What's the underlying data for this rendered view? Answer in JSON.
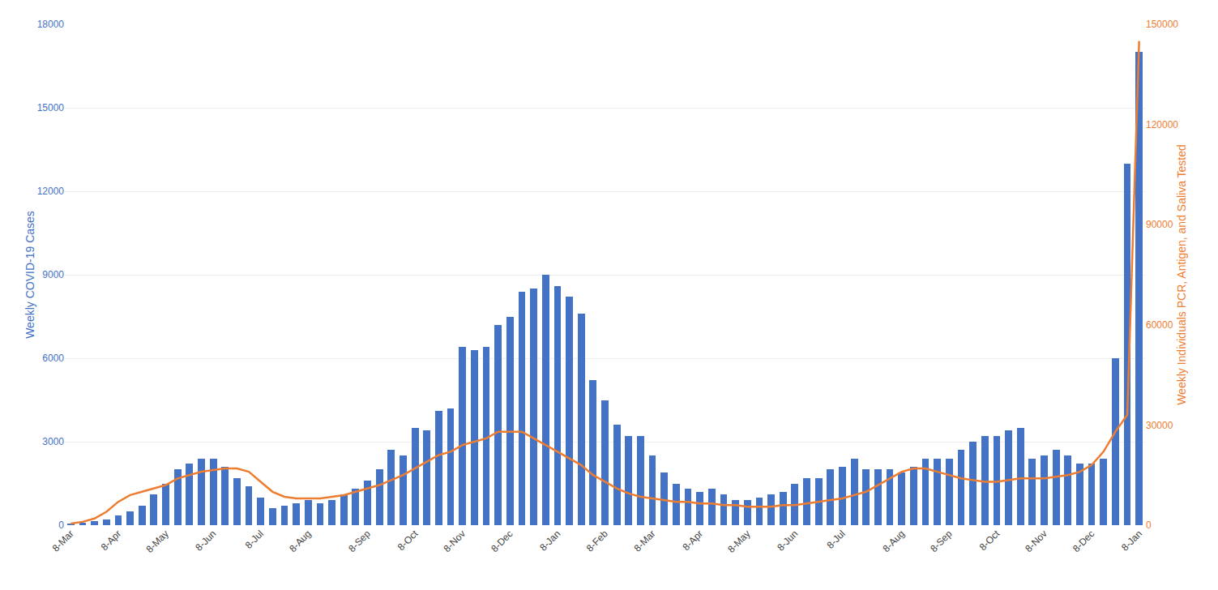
{
  "chart_data": {
    "type": "bar",
    "ylabel": "Weekly COVID-19 Cases",
    "y2label": "Weekly Individuals PCR, Antigen, and Saliva Tested",
    "categories": [
      "8-Mar",
      null,
      null,
      null,
      "8-Apr",
      null,
      null,
      null,
      "8-May",
      null,
      null,
      null,
      "8-Jun",
      null,
      null,
      null,
      "8-Jul",
      null,
      null,
      null,
      "8-Aug",
      null,
      null,
      null,
      null,
      "8-Sep",
      null,
      null,
      null,
      "8-Oct",
      null,
      null,
      null,
      "8-Nov",
      null,
      null,
      null,
      "8-Dec",
      null,
      null,
      null,
      "8-Jan",
      null,
      null,
      null,
      "8-Feb",
      null,
      null,
      null,
      "8-Mar",
      null,
      null,
      null,
      "8-Apr",
      null,
      null,
      null,
      "8-May",
      null,
      null,
      null,
      "8-Jun",
      null,
      null,
      null,
      "8-Jul",
      null,
      null,
      null,
      null,
      "8-Aug",
      null,
      null,
      null,
      "8-Sep",
      null,
      null,
      null,
      "8-Oct",
      null,
      null,
      null,
      "8-Nov",
      null,
      null,
      null,
      "8-Dec",
      null,
      null,
      null,
      "8-Jan"
    ],
    "series": [
      {
        "type": "bar",
        "color": "#4472C4",
        "values": [
          50,
          100,
          150,
          200,
          350,
          500,
          700,
          1100,
          1500,
          2000,
          2200,
          2400,
          2400,
          2100,
          1700,
          1400,
          1000,
          600,
          700,
          800,
          900,
          800,
          900,
          1100,
          1300,
          1600,
          2000,
          2700,
          2500,
          3500,
          3400,
          4100,
          4200,
          6400,
          6300,
          6400,
          7200,
          7500,
          8400,
          8500,
          9000,
          8600,
          8200,
          7600,
          5200,
          4500,
          3600,
          3200,
          3200,
          2500,
          1900,
          1500,
          1300,
          1200,
          1300,
          1100,
          900,
          900,
          1000,
          1100,
          1200,
          1500,
          1700,
          1700,
          2000,
          2100,
          2400,
          2000,
          2000,
          2000,
          1900,
          2100,
          2400,
          2400,
          2400,
          2700,
          3000,
          3200,
          3200,
          3400,
          3500,
          2400,
          2500,
          2700,
          2500,
          2200,
          2200,
          2400,
          6000,
          13000,
          17000
        ]
      },
      {
        "type": "line",
        "color": "#ED7D31",
        "axis": "y2",
        "values": [
          500,
          1000,
          2000,
          4000,
          7000,
          9000,
          10000,
          11000,
          12000,
          14000,
          15000,
          16000,
          16500,
          17000,
          17000,
          16000,
          13000,
          10000,
          8500,
          8000,
          8000,
          8000,
          8500,
          9000,
          10000,
          11000,
          12000,
          13500,
          15000,
          17000,
          19000,
          21000,
          22000,
          24000,
          25000,
          26000,
          28000,
          28000,
          28000,
          26000,
          24000,
          22000,
          20000,
          18000,
          15000,
          13000,
          11000,
          9500,
          8500,
          8000,
          7500,
          7000,
          7000,
          6500,
          6500,
          6000,
          6000,
          5500,
          5500,
          5500,
          6000,
          6000,
          6500,
          7000,
          7500,
          8000,
          9000,
          10000,
          12000,
          14000,
          16000,
          17000,
          17000,
          16000,
          15000,
          14000,
          13500,
          13000,
          13000,
          13500,
          14000,
          14000,
          14000,
          14500,
          15000,
          16000,
          18000,
          22000,
          28000,
          33000,
          145000
        ]
      }
    ],
    "ylim": [
      0,
      18000
    ],
    "yticks": [
      0,
      3000,
      6000,
      9000,
      12000,
      15000,
      18000
    ],
    "y2lim": [
      0,
      150000
    ],
    "y2ticks": [
      0,
      30000,
      60000,
      90000,
      120000,
      150000
    ],
    "grid": true
  }
}
